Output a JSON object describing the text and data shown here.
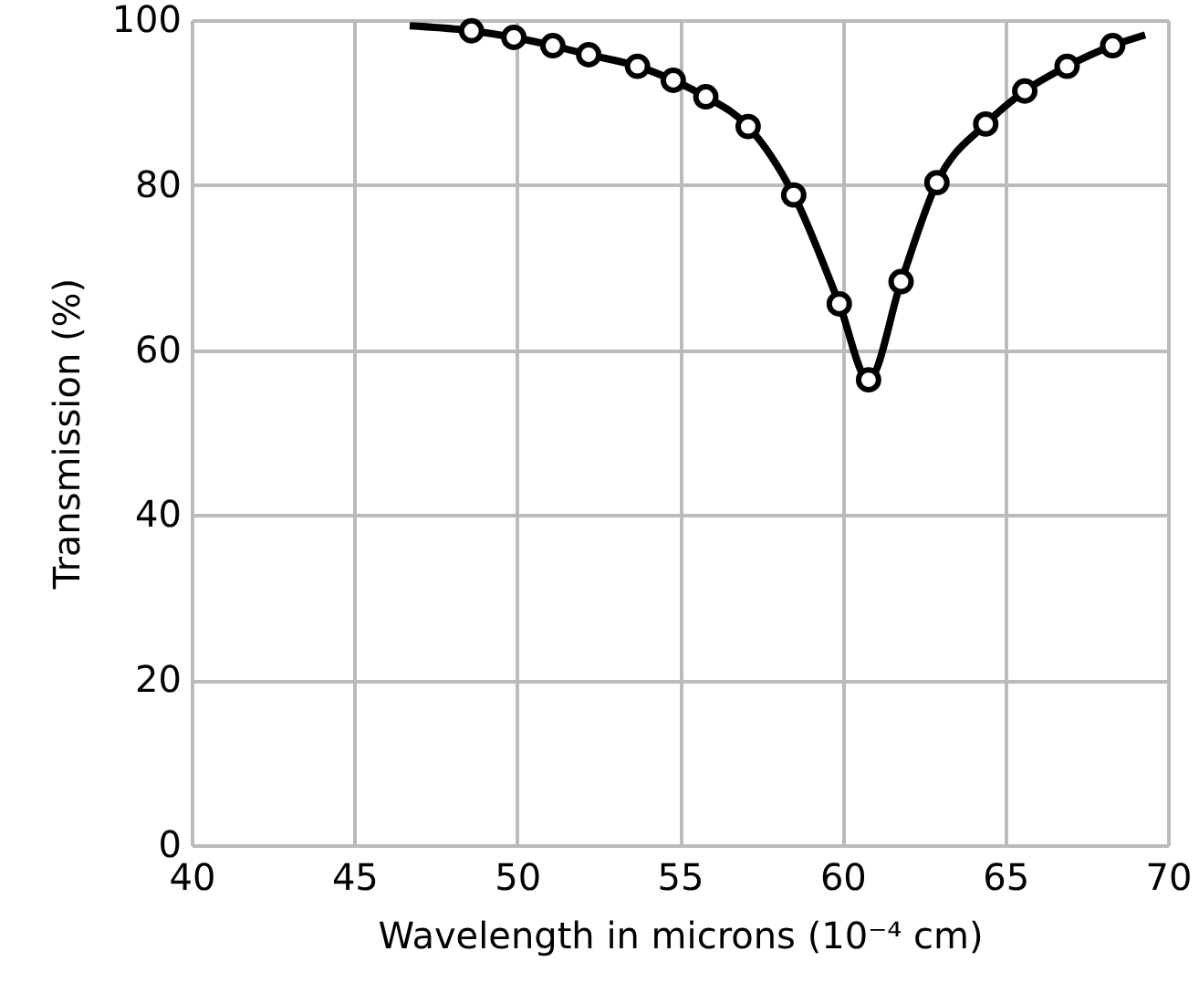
{
  "chart_data": {
    "type": "line",
    "xlabel": "Wavelength in microns (10⁻⁴ cm)",
    "ylabel": "Transmission (%)",
    "xlim": [
      40,
      70
    ],
    "xticks": [
      40,
      45,
      50,
      55,
      60,
      65,
      70
    ],
    "ylim": [
      0,
      100
    ],
    "yticks": [
      0,
      20,
      40,
      60,
      80,
      100
    ],
    "grid": true,
    "series": [
      {
        "type": "line",
        "marker": "none",
        "color": "#000000",
        "x": [
          46.7,
          48.6,
          49.9,
          51.1,
          52.2,
          53.7,
          54.8,
          55.8,
          57.1,
          58.5,
          59.9,
          60.8,
          61.8,
          62.9,
          64.4,
          65.6,
          66.9,
          68.3,
          69.3
        ],
        "values": [
          99.3,
          98.7,
          97.9,
          96.9,
          95.8,
          94.4,
          92.7,
          90.7,
          87.1,
          78.8,
          65.6,
          56.4,
          68.3,
          80.3,
          87.4,
          91.4,
          94.4,
          96.9,
          98.2
        ]
      },
      {
        "type": "scatter",
        "marker": "circle",
        "color": "#000000",
        "x": [
          48.6,
          49.9,
          51.1,
          52.2,
          53.7,
          54.8,
          55.8,
          57.1,
          58.5,
          59.9,
          60.8,
          61.8,
          62.9,
          64.4,
          65.6,
          66.9,
          68.3
        ],
        "values": [
          98.7,
          97.9,
          96.9,
          95.8,
          94.4,
          92.7,
          90.7,
          87.1,
          78.8,
          65.6,
          56.4,
          68.3,
          80.3,
          87.4,
          91.4,
          94.4,
          96.9
        ]
      }
    ]
  }
}
